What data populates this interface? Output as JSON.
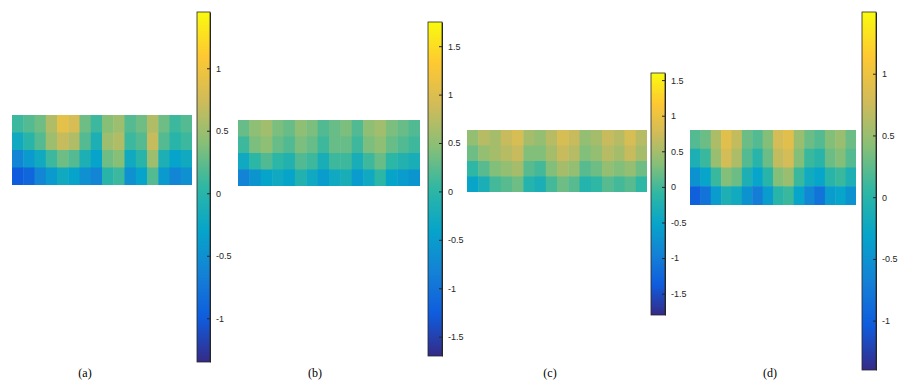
{
  "chart_data": [
    {
      "type": "heatmap",
      "title": "(a)",
      "color_range": [
        -1.35,
        1.45
      ],
      "color_ticks": [
        -1,
        -0.5,
        0,
        0.5,
        1
      ],
      "cells": [
        [
          0.1,
          0.2,
          0.3,
          0.6,
          0.9,
          0.8,
          0.3,
          0.1,
          0.4,
          0.5,
          0.2,
          0.3,
          0.6,
          0.3,
          0.1,
          0.2
        ],
        [
          -0.2,
          0.0,
          0.2,
          0.5,
          0.7,
          0.6,
          0.2,
          -0.1,
          0.5,
          0.6,
          0.1,
          0.2,
          0.7,
          0.2,
          0.0,
          0.1
        ],
        [
          -0.6,
          -0.4,
          -0.2,
          0.1,
          0.3,
          0.2,
          -0.1,
          -0.3,
          0.3,
          0.4,
          -0.2,
          0.0,
          0.5,
          -0.1,
          -0.3,
          -0.2
        ],
        [
          -1.0,
          -0.9,
          -0.6,
          -0.4,
          -0.2,
          -0.3,
          -0.5,
          -0.6,
          0.0,
          0.1,
          -0.5,
          -0.3,
          0.2,
          -0.4,
          -0.6,
          -0.5
        ]
      ]
    },
    {
      "type": "heatmap",
      "title": "(b)",
      "color_range": [
        -1.7,
        1.75
      ],
      "color_ticks": [
        -1.5,
        -1,
        -0.5,
        0,
        0.5,
        1,
        1.5
      ],
      "cells": [
        [
          0.3,
          0.5,
          0.6,
          0.4,
          0.3,
          0.5,
          0.4,
          0.2,
          0.3,
          0.4,
          0.2,
          0.5,
          0.6,
          0.4,
          0.3,
          0.2
        ],
        [
          0.1,
          0.4,
          0.5,
          0.3,
          0.2,
          0.4,
          0.3,
          0.1,
          0.3,
          0.3,
          0.1,
          0.4,
          0.5,
          0.3,
          0.2,
          0.1
        ],
        [
          -0.3,
          0.0,
          0.2,
          0.0,
          -0.1,
          0.2,
          0.1,
          -0.2,
          0.1,
          0.1,
          -0.2,
          0.1,
          0.3,
          0.0,
          -0.1,
          -0.2
        ],
        [
          -0.8,
          -0.6,
          -0.4,
          -0.3,
          -0.4,
          -0.1,
          -0.3,
          -0.5,
          -0.3,
          -0.2,
          -0.5,
          -0.3,
          0.0,
          -0.4,
          -0.5,
          -0.6
        ]
      ]
    },
    {
      "type": "heatmap",
      "title": "(c)",
      "color_range": [
        -1.8,
        1.6
      ],
      "color_ticks": [
        -1.5,
        -1,
        -0.5,
        0,
        0.5,
        1,
        1.5
      ],
      "cells": [
        [
          0.4,
          0.6,
          0.5,
          0.7,
          0.8,
          0.5,
          0.4,
          0.6,
          0.8,
          0.7,
          0.4,
          0.5,
          0.7,
          0.6,
          0.8,
          0.6
        ],
        [
          0.2,
          0.4,
          0.5,
          0.6,
          0.7,
          0.3,
          0.3,
          0.5,
          0.7,
          0.6,
          0.3,
          0.4,
          0.6,
          0.5,
          0.7,
          0.5
        ],
        [
          -0.1,
          0.1,
          0.3,
          0.4,
          0.5,
          0.1,
          0.0,
          0.3,
          0.5,
          0.4,
          0.1,
          0.2,
          0.4,
          0.3,
          0.4,
          0.2
        ],
        [
          -0.5,
          -0.3,
          0.0,
          0.1,
          0.2,
          -0.2,
          -0.3,
          0.0,
          0.2,
          0.1,
          -0.2,
          -0.1,
          0.1,
          0.0,
          0.1,
          -0.1
        ]
      ]
    },
    {
      "type": "heatmap",
      "title": "(d)",
      "color_range": [
        -1.4,
        1.5
      ],
      "color_ticks": [
        -1,
        -0.5,
        0,
        0.5,
        1
      ],
      "cells": [
        [
          0.2,
          0.3,
          0.6,
          0.9,
          0.7,
          0.3,
          0.2,
          0.4,
          0.8,
          0.9,
          0.5,
          0.3,
          0.2,
          0.4,
          0.5,
          0.3
        ],
        [
          -0.1,
          0.1,
          0.5,
          0.8,
          0.6,
          0.2,
          0.0,
          0.3,
          0.7,
          0.8,
          0.4,
          0.1,
          0.0,
          0.3,
          0.4,
          0.2
        ],
        [
          -0.5,
          -0.3,
          0.1,
          0.4,
          0.3,
          -0.1,
          -0.3,
          0.0,
          0.4,
          0.5,
          0.1,
          -0.2,
          -0.3,
          0.0,
          0.1,
          -0.1
        ],
        [
          -1.0,
          -0.8,
          -0.4,
          -0.1,
          -0.2,
          -0.5,
          -0.7,
          -0.4,
          0.0,
          0.1,
          -0.3,
          -0.6,
          -0.8,
          -0.4,
          -0.3,
          -0.5
        ]
      ]
    }
  ]
}
